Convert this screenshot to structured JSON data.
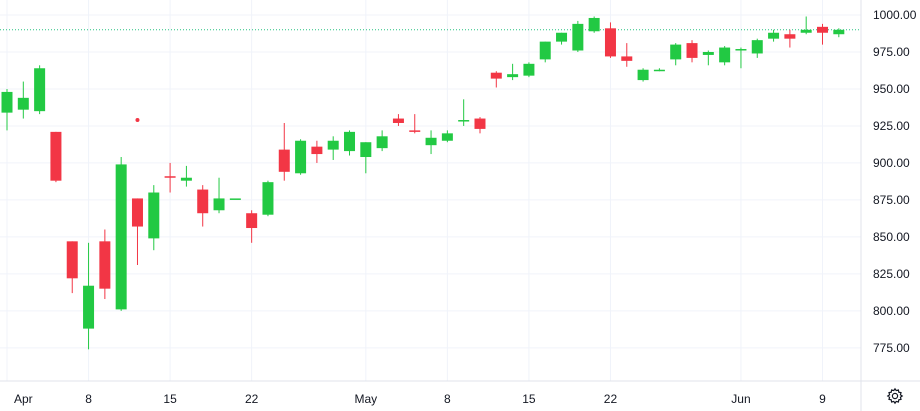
{
  "chart_data": {
    "type": "candlestick",
    "title": "",
    "xlabel": "",
    "ylabel": "",
    "x_tick_labels": [
      "Apr",
      "8",
      "15",
      "22",
      "May",
      "8",
      "15",
      "22",
      "Jun",
      "9"
    ],
    "y_tick_labels": [
      "1000.00",
      "975.00",
      "950.00",
      "925.00",
      "900.00",
      "875.00",
      "850.00",
      "825.00",
      "800.00",
      "775.00"
    ],
    "ylim": [
      757,
      1010
    ],
    "grid": true,
    "reference_line": {
      "value": 990,
      "style": "dotted",
      "color": "#26c281"
    },
    "isolated_point": {
      "date": "Apr 11",
      "value": 929,
      "color": "#f23645"
    },
    "colors": {
      "up": "#22c943",
      "down": "#f23645",
      "grid": "#f0f3fa",
      "text": "#131722"
    },
    "candles": [
      {
        "date": "Apr 1",
        "open": 934,
        "high": 950,
        "low": 922,
        "close": 948
      },
      {
        "date": "Apr 2",
        "open": 936,
        "high": 955,
        "low": 930,
        "close": 944
      },
      {
        "date": "Apr 3",
        "open": 935,
        "high": 966,
        "low": 933,
        "close": 964
      },
      {
        "date": "Apr 4",
        "open": 921,
        "high": 921,
        "low": 887,
        "close": 888
      },
      {
        "date": "Apr 5",
        "open": 847,
        "high": 847,
        "low": 812,
        "close": 822
      },
      {
        "date": "Apr 8",
        "open": 788,
        "high": 846,
        "low": 774,
        "close": 817
      },
      {
        "date": "Apr 9",
        "open": 847,
        "high": 855,
        "low": 808,
        "close": 815
      },
      {
        "date": "Apr 10",
        "open": 801,
        "high": 904,
        "low": 800,
        "close": 899
      },
      {
        "date": "Apr 11",
        "open": 876,
        "high": 876,
        "low": 831,
        "close": 857
      },
      {
        "date": "Apr 12",
        "open": 849,
        "high": 885,
        "low": 841,
        "close": 880
      },
      {
        "date": "Apr 15",
        "open": 891,
        "high": 900,
        "low": 880,
        "close": 890
      },
      {
        "date": "Apr 16",
        "open": 888,
        "high": 898,
        "low": 884,
        "close": 890
      },
      {
        "date": "Apr 17",
        "open": 882,
        "high": 885,
        "low": 857,
        "close": 866
      },
      {
        "date": "Apr 18",
        "open": 868,
        "high": 890,
        "low": 866,
        "close": 876
      },
      {
        "date": "Apr 19",
        "open": 876,
        "high": 876,
        "low": 876,
        "close": 876
      },
      {
        "date": "Apr 22",
        "open": 866,
        "high": 868,
        "low": 846,
        "close": 856
      },
      {
        "date": "Apr 23",
        "open": 865,
        "high": 888,
        "low": 864,
        "close": 887
      },
      {
        "date": "Apr 24",
        "open": 909,
        "high": 927,
        "low": 888,
        "close": 894
      },
      {
        "date": "Apr 25",
        "open": 893,
        "high": 916,
        "low": 892,
        "close": 915
      },
      {
        "date": "Apr 26",
        "open": 911,
        "high": 915,
        "low": 900,
        "close": 906
      },
      {
        "date": "Apr 29",
        "open": 909,
        "high": 918,
        "low": 902,
        "close": 915
      },
      {
        "date": "Apr 30",
        "open": 908,
        "high": 922,
        "low": 905,
        "close": 921
      },
      {
        "date": "May 1",
        "open": 904,
        "high": 914,
        "low": 893,
        "close": 914
      },
      {
        "date": "May 2",
        "open": 910,
        "high": 922,
        "low": 908,
        "close": 918
      },
      {
        "date": "May 3",
        "open": 930,
        "high": 933,
        "low": 925,
        "close": 927
      },
      {
        "date": "May 6",
        "open": 922,
        "high": 933,
        "low": 920,
        "close": 921
      },
      {
        "date": "May 7",
        "open": 912,
        "high": 922,
        "low": 906,
        "close": 917
      },
      {
        "date": "May 8",
        "open": 915,
        "high": 922,
        "low": 914,
        "close": 920
      },
      {
        "date": "May 9",
        "open": 928,
        "high": 943,
        "low": 925,
        "close": 929
      },
      {
        "date": "May 10",
        "open": 930,
        "high": 931,
        "low": 920,
        "close": 923
      },
      {
        "date": "May 13",
        "open": 961,
        "high": 962,
        "low": 951,
        "close": 957
      },
      {
        "date": "May 14",
        "open": 958,
        "high": 967,
        "low": 956,
        "close": 960
      },
      {
        "date": "May 15",
        "open": 959,
        "high": 968,
        "low": 958,
        "close": 967
      },
      {
        "date": "May 16",
        "open": 970,
        "high": 982,
        "low": 968,
        "close": 982
      },
      {
        "date": "May 17",
        "open": 982,
        "high": 988,
        "low": 980,
        "close": 988
      },
      {
        "date": "May 20",
        "open": 976,
        "high": 996,
        "low": 975,
        "close": 994
      },
      {
        "date": "May 21",
        "open": 989,
        "high": 999,
        "low": 988,
        "close": 998
      },
      {
        "date": "May 22",
        "open": 991,
        "high": 995,
        "low": 971,
        "close": 972
      },
      {
        "date": "May 23",
        "open": 972,
        "high": 981,
        "low": 965,
        "close": 969
      },
      {
        "date": "May 24",
        "open": 956,
        "high": 964,
        "low": 955,
        "close": 963
      },
      {
        "date": "May 27",
        "open": 963,
        "high": 964,
        "low": 962,
        "close": 963
      },
      {
        "date": "May 28",
        "open": 970,
        "high": 981,
        "low": 966,
        "close": 980
      },
      {
        "date": "May 29",
        "open": 981,
        "high": 983,
        "low": 968,
        "close": 971
      },
      {
        "date": "May 30",
        "open": 973,
        "high": 976,
        "low": 966,
        "close": 975
      },
      {
        "date": "May 31",
        "open": 968,
        "high": 979,
        "low": 966,
        "close": 978
      },
      {
        "date": "Jun 3",
        "open": 977,
        "high": 978,
        "low": 964,
        "close": 977
      },
      {
        "date": "Jun 4",
        "open": 974,
        "high": 984,
        "low": 971,
        "close": 983
      },
      {
        "date": "Jun 5",
        "open": 984,
        "high": 990,
        "low": 982,
        "close": 988
      },
      {
        "date": "Jun 6",
        "open": 987,
        "high": 990,
        "low": 978,
        "close": 984
      },
      {
        "date": "Jun 7",
        "open": 988,
        "high": 999,
        "low": 987,
        "close": 990
      },
      {
        "date": "Jun 10",
        "open": 992,
        "high": 994,
        "low": 980,
        "close": 988
      },
      {
        "date": "Jun 11",
        "open": 987,
        "high": 991,
        "low": 985,
        "close": 990
      }
    ]
  }
}
